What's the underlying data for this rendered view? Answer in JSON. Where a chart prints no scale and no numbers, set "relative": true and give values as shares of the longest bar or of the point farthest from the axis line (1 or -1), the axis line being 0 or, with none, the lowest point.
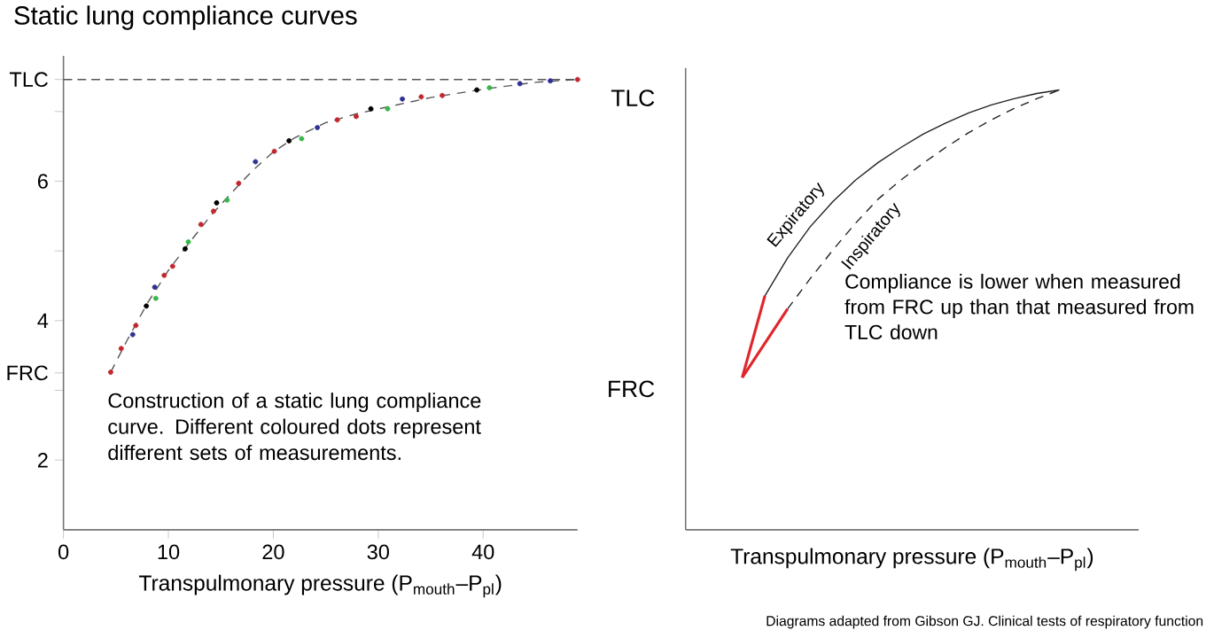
{
  "chart_data": [
    {
      "type": "scatter",
      "title": "Static lung compliance curves",
      "xlabel": "Transpulmonary pressure (P$_{mouth}$–P$_{pl}$)",
      "xlim": [
        0,
        49
      ],
      "ylim": [
        1,
        7.8
      ],
      "xticks": [
        0,
        10,
        20,
        30,
        40
      ],
      "yticks": [
        2,
        {
          "value": 3,
          "label": null
        },
        {
          "value": 3.25,
          "label": "FRC"
        },
        4,
        {
          "value": 5,
          "label": null
        },
        6,
        {
          "value": 7,
          "label": null
        },
        {
          "value": 7.46,
          "label": "TLC"
        }
      ],
      "ref_lines": [
        {
          "axis": "y",
          "value": 7.46,
          "line_style": "dashed",
          "color": "#555555"
        }
      ],
      "annotations": [
        "Construction of a static lung compliance curve.  Different coloured dots represent different sets of measurements."
      ],
      "series": [
        {
          "type": "line",
          "line_style": "dashed",
          "marker": "none",
          "color": "#555555",
          "x": [
            4.5,
            6,
            8,
            10,
            12,
            14,
            16,
            18,
            20,
            22,
            25,
            28,
            31,
            35,
            40,
            45,
            49
          ],
          "values": [
            3.26,
            3.7,
            4.25,
            4.72,
            5.12,
            5.5,
            5.83,
            6.15,
            6.42,
            6.62,
            6.84,
            6.97,
            7.07,
            7.2,
            7.32,
            7.42,
            7.46
          ]
        },
        {
          "type": "scatter",
          "marker": "circle",
          "color": "#c1272d",
          "x": [
            4.5,
            5.5,
            6.9,
            9.6,
            10.4,
            13.1,
            14.3,
            16.7,
            20.1,
            26.1,
            27.9,
            34.1,
            36.1,
            49.0
          ],
          "values": [
            3.26,
            3.6,
            3.93,
            4.65,
            4.78,
            5.38,
            5.57,
            5.97,
            6.43,
            6.88,
            6.93,
            7.21,
            7.23,
            7.46
          ]
        },
        {
          "type": "scatter",
          "marker": "circle",
          "color": "#2e3192",
          "x": [
            6.6,
            8.7,
            18.3,
            24.2,
            32.3,
            43.5,
            46.4
          ],
          "values": [
            3.8,
            4.48,
            6.28,
            6.77,
            7.18,
            7.4,
            7.44
          ]
        },
        {
          "type": "scatter",
          "marker": "circle",
          "color": "#39b54a",
          "x": [
            8.8,
            11.9,
            15.6,
            22.7,
            30.9,
            40.6
          ],
          "values": [
            4.32,
            5.13,
            5.73,
            6.61,
            7.04,
            7.34
          ]
        },
        {
          "type": "scatter",
          "marker": "circle",
          "color": "#000000",
          "x": [
            7.9,
            11.6,
            14.6,
            21.5,
            29.3,
            39.4
          ],
          "values": [
            4.21,
            5.03,
            5.69,
            6.58,
            7.04,
            7.31
          ]
        }
      ]
    },
    {
      "type": "line",
      "relative": true,
      "xlabel": "Transpulmonary pressure (P$_{mouth}$–P$_{pl}$)",
      "categories": [
        null,
        null,
        null,
        null,
        null,
        null,
        null,
        null,
        null,
        null,
        null,
        null,
        null,
        null,
        null,
        null,
        null,
        null,
        null,
        null
      ],
      "annotations": [
        "TLC",
        "FRC",
        "Compliance is lower when measured from FRC up than that measured from TLC down",
        "Diagrams adapted from Gibson GJ. Clinical tests of respiratory function"
      ],
      "series": [
        {
          "name": "Expiratory",
          "color": "#231f20",
          "line_style": "solid",
          "values": [
            null,
            null,
            null,
            0.532,
            0.618,
            0.689,
            0.746,
            0.795,
            0.835,
            0.869,
            0.9,
            0.925,
            0.948,
            0.966,
            0.98,
            0.992,
            1.0,
            null,
            null,
            null
          ]
        },
        {
          "name": "Inspiratory",
          "color": "#231f20",
          "line_style": "dashed",
          "values": [
            null,
            null,
            null,
            null,
            0.502,
            0.571,
            0.636,
            0.697,
            0.752,
            0.795,
            0.834,
            0.87,
            0.903,
            0.932,
            0.958,
            0.98,
            1.0,
            null,
            null,
            null
          ]
        },
        {
          "color": "#e0262b",
          "line_style": "solid",
          "values": [
            null,
            null,
            0.346,
            0.532,
            null,
            null,
            null,
            null,
            null,
            null,
            null,
            null,
            null,
            null,
            null,
            null,
            null,
            null,
            null,
            null
          ]
        },
        {
          "color": "#e0262b",
          "line_style": "solid",
          "values": [
            null,
            null,
            0.346,
            0.424,
            0.502,
            null,
            null,
            null,
            null,
            null,
            null,
            null,
            null,
            null,
            null,
            null,
            null,
            null,
            null,
            null
          ]
        }
      ]
    }
  ]
}
